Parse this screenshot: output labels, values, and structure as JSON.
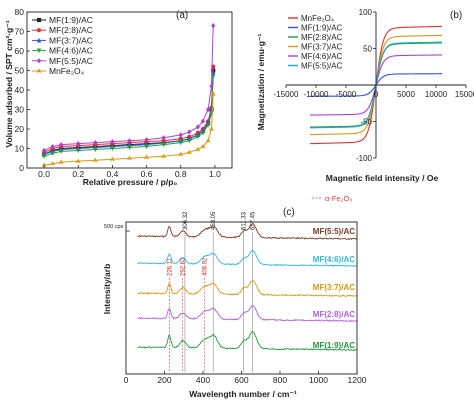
{
  "chart_data": [
    {
      "type": "line",
      "panel_label": "(a)",
      "xlabel": "Relative pressure / p/p₀",
      "ylabel": "Volume adsorbed / SPT cm³·g⁻¹",
      "xlim": [
        -0.1,
        1.1
      ],
      "ylim": [
        0,
        80
      ],
      "xticks": [
        0.0,
        0.2,
        0.4,
        0.6,
        0.8,
        1.0
      ],
      "xtick_labels": [
        "0.0",
        "0.2",
        "0.4",
        "0.6",
        "0.8",
        "1.0"
      ],
      "yticks": [
        0,
        10,
        20,
        30,
        40,
        50,
        60,
        70,
        80
      ],
      "ytick_labels": [
        "0",
        "10",
        "20",
        "30",
        "40",
        "50",
        "60",
        "70",
        "80"
      ],
      "legend_position": "top-left",
      "x": [
        0.0,
        0.05,
        0.1,
        0.2,
        0.3,
        0.4,
        0.5,
        0.6,
        0.7,
        0.8,
        0.85,
        0.9,
        0.93,
        0.96,
        0.98,
        0.99
      ],
      "series": [
        {
          "name": "MF(1:9)/AC",
          "color": "#222222",
          "marker": "square",
          "y": [
            7,
            9,
            10,
            10.5,
            11,
            11.5,
            12,
            12.5,
            13,
            14,
            15,
            17,
            19,
            23,
            30,
            50
          ]
        },
        {
          "name": "MF(2:8)/AC",
          "color": "#e03030",
          "marker": "circle",
          "y": [
            8,
            10,
            11,
            11.5,
            12,
            12.5,
            13,
            13.5,
            14,
            15,
            16,
            18,
            20,
            24,
            31,
            52
          ]
        },
        {
          "name": "MF(3:7)/AC",
          "color": "#3050e0",
          "marker": "triangle",
          "y": [
            7,
            8.5,
            9.5,
            10,
            10.5,
            11,
            11.5,
            12,
            12.8,
            14,
            15,
            17,
            19,
            23,
            30,
            49
          ]
        },
        {
          "name": "MF(4:6)/AC",
          "color": "#20a040",
          "marker": "triangle-down",
          "y": [
            6,
            7.5,
            8.5,
            9,
            9.5,
            10,
            10.5,
            11,
            12,
            13,
            14,
            16,
            18,
            22,
            28,
            47
          ]
        },
        {
          "name": "MF(5:5)/AC",
          "color": "#b040d0",
          "marker": "diamond",
          "y": [
            9,
            11,
            12,
            12.5,
            13,
            13.5,
            14,
            14.5,
            15.5,
            17,
            18.5,
            21,
            24,
            30,
            42,
            73
          ]
        },
        {
          "name": "MnFe₂O₄",
          "color": "#d89a10",
          "marker": "star",
          "y": [
            1.5,
            2.2,
            3,
            3.5,
            4,
            4.5,
            5,
            5.5,
            6,
            7,
            8,
            9.5,
            11,
            14,
            20,
            38
          ]
        }
      ]
    },
    {
      "type": "line",
      "panel_label": "(b)",
      "xlabel": "Magnetic field intensity / Oe",
      "ylabel": "Magnetization / emu·g⁻¹",
      "xlim": [
        -15000,
        15000
      ],
      "ylim": [
        -100,
        100
      ],
      "xticks": [
        -15000,
        -10000,
        -5000,
        0,
        5000,
        10000,
        15000
      ],
      "xtick_labels": [
        "-15000",
        "-10000",
        "-5000",
        "0",
        "5000",
        "10000",
        "15000"
      ],
      "yticks": [
        -100,
        -50,
        0,
        50,
        100
      ],
      "ytick_labels": [
        "-100",
        "-50",
        "0",
        "50",
        "100"
      ],
      "legend_position": "top-left",
      "series": [
        {
          "name": "MnFe₂O₄",
          "color": "#e03030",
          "ms": 78
        },
        {
          "name": "MF(1:9)/AC",
          "color": "#3050e0",
          "ms": 15
        },
        {
          "name": "MF(2:8)/AC",
          "color": "#20a040",
          "ms": 56
        },
        {
          "name": "MF(3:7)/AC",
          "color": "#d89a10",
          "ms": 66
        },
        {
          "name": "MF(4:6)/AC",
          "color": "#b040d0",
          "ms": 40
        },
        {
          "name": "MF(5:5)/AC",
          "color": "#20a8c8",
          "ms": 57
        }
      ]
    },
    {
      "type": "line",
      "panel_label": "(c)",
      "xlabel": "Wavelength number / cm⁻¹",
      "ylabel": "Intensity/arb",
      "xlim": [
        0,
        1200
      ],
      "xticks": [
        0,
        200,
        400,
        600,
        800,
        1000,
        1200
      ],
      "xtick_labels": [
        "0",
        "200",
        "400",
        "600",
        "800",
        "1000",
        "1200"
      ],
      "scale_label": "500 cps",
      "legend_entry": "α-Fe₂O₃",
      "legend_position": "top-right",
      "peaks_top": [
        {
          "value": 306.32,
          "label": "306.32"
        },
        {
          "value": 453.05,
          "label": "453.05"
        },
        {
          "value": 611.33,
          "label": "611.33"
        },
        {
          "value": 657.45,
          "label": "657.45"
        }
      ],
      "peaks_red": [
        {
          "value": 226.11,
          "label": "226.11"
        },
        {
          "value": 292.63,
          "label": "292.63"
        },
        {
          "value": 408.92,
          "label": "408.92"
        }
      ],
      "series": [
        {
          "name": "MF(5:5)/AC",
          "color": "#7a3a20"
        },
        {
          "name": "MF(4:6)/AC",
          "color": "#30b8d8"
        },
        {
          "name": "MF(3:7)/AC",
          "color": "#d89a10"
        },
        {
          "name": "MF(2:8)/AC",
          "color": "#b060e0"
        },
        {
          "name": "MF(1:9)/AC",
          "color": "#209a40"
        }
      ]
    }
  ]
}
